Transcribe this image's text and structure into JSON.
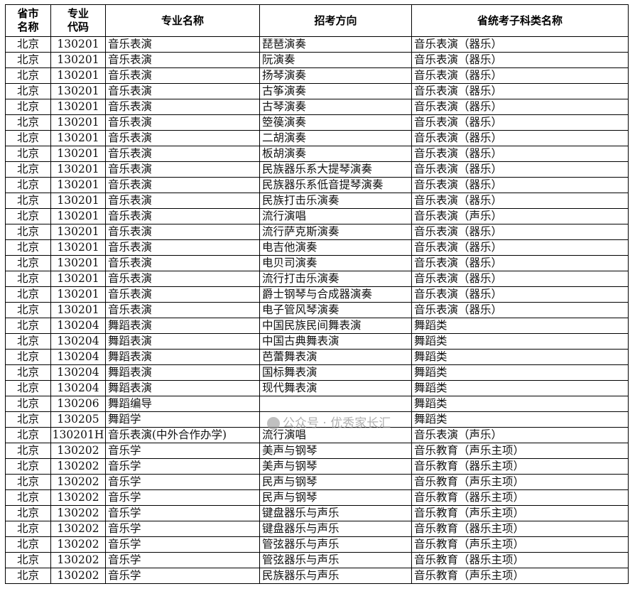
{
  "table": {
    "headers": [
      "省市\n名称",
      "专业\n代码",
      "专业名称",
      "招考方向",
      "省统考子科类名称"
    ],
    "rows": [
      [
        "北京",
        "130201",
        "音乐表演",
        "琵琶演奏",
        "音乐表演（器乐）"
      ],
      [
        "北京",
        "130201",
        "音乐表演",
        "阮演奏",
        "音乐表演（器乐）"
      ],
      [
        "北京",
        "130201",
        "音乐表演",
        "扬琴演奏",
        "音乐表演（器乐）"
      ],
      [
        "北京",
        "130201",
        "音乐表演",
        "古筝演奏",
        "音乐表演（器乐）"
      ],
      [
        "北京",
        "130201",
        "音乐表演",
        "古琴演奏",
        "音乐表演（器乐）"
      ],
      [
        "北京",
        "130201",
        "音乐表演",
        "箜篌演奏",
        "音乐表演（器乐）"
      ],
      [
        "北京",
        "130201",
        "音乐表演",
        "二胡演奏",
        "音乐表演（器乐）"
      ],
      [
        "北京",
        "130201",
        "音乐表演",
        "板胡演奏",
        "音乐表演（器乐）"
      ],
      [
        "北京",
        "130201",
        "音乐表演",
        "民族器乐系大提琴演奏",
        "音乐表演（器乐）"
      ],
      [
        "北京",
        "130201",
        "音乐表演",
        "民族器乐系低音提琴演奏",
        "音乐表演（器乐）"
      ],
      [
        "北京",
        "130201",
        "音乐表演",
        "民族打击乐演奏",
        "音乐表演（器乐）"
      ],
      [
        "北京",
        "130201",
        "音乐表演",
        "流行演唱",
        "音乐表演（声乐）"
      ],
      [
        "北京",
        "130201",
        "音乐表演",
        "流行萨克斯演奏",
        "音乐表演（器乐）"
      ],
      [
        "北京",
        "130201",
        "音乐表演",
        "电吉他演奏",
        "音乐表演（器乐）"
      ],
      [
        "北京",
        "130201",
        "音乐表演",
        "电贝司演奏",
        "音乐表演（器乐）"
      ],
      [
        "北京",
        "130201",
        "音乐表演",
        "流行打击乐演奏",
        "音乐表演（器乐）"
      ],
      [
        "北京",
        "130201",
        "音乐表演",
        "爵士钢琴与合成器演奏",
        "音乐表演（器乐）"
      ],
      [
        "北京",
        "130201",
        "音乐表演",
        "电子管风琴演奏",
        "音乐表演（器乐）"
      ],
      [
        "北京",
        "130204",
        "舞蹈表演",
        "中国民族民间舞表演",
        "舞蹈类"
      ],
      [
        "北京",
        "130204",
        "舞蹈表演",
        "中国古典舞表演",
        "舞蹈类"
      ],
      [
        "北京",
        "130204",
        "舞蹈表演",
        "芭蕾舞表演",
        "舞蹈类"
      ],
      [
        "北京",
        "130204",
        "舞蹈表演",
        "国标舞表演",
        "舞蹈类"
      ],
      [
        "北京",
        "130204",
        "舞蹈表演",
        "现代舞表演",
        "舞蹈类"
      ],
      [
        "北京",
        "130206",
        "舞蹈编导",
        "",
        "舞蹈类"
      ],
      [
        "北京",
        "130205",
        "舞蹈学",
        "",
        "舞蹈类"
      ],
      [
        "北京",
        "130201H",
        "音乐表演(中外合作办学)",
        "流行演唱",
        "音乐表演（声乐）"
      ],
      [
        "北京",
        "130202",
        "音乐学",
        "美声与钢琴",
        "音乐教育（声乐主项）"
      ],
      [
        "北京",
        "130202",
        "音乐学",
        "美声与钢琴",
        "音乐教育（器乐主项）"
      ],
      [
        "北京",
        "130202",
        "音乐学",
        "民声与钢琴",
        "音乐教育（声乐主项）"
      ],
      [
        "北京",
        "130202",
        "音乐学",
        "民声与钢琴",
        "音乐教育（器乐主项）"
      ],
      [
        "北京",
        "130202",
        "音乐学",
        "键盘器乐与声乐",
        "音乐教育（声乐主项）"
      ],
      [
        "北京",
        "130202",
        "音乐学",
        "键盘器乐与声乐",
        "音乐教育（器乐主项）"
      ],
      [
        "北京",
        "130202",
        "音乐学",
        "管弦器乐与声乐",
        "音乐教育（声乐主项）"
      ],
      [
        "北京",
        "130202",
        "音乐学",
        "管弦器乐与声乐",
        "音乐教育（器乐主项）"
      ],
      [
        "北京",
        "130202",
        "音乐学",
        "民族器乐与声乐",
        "音乐教育（声乐主项）"
      ]
    ]
  },
  "watermark": "公众号 · 优秀家长汇"
}
